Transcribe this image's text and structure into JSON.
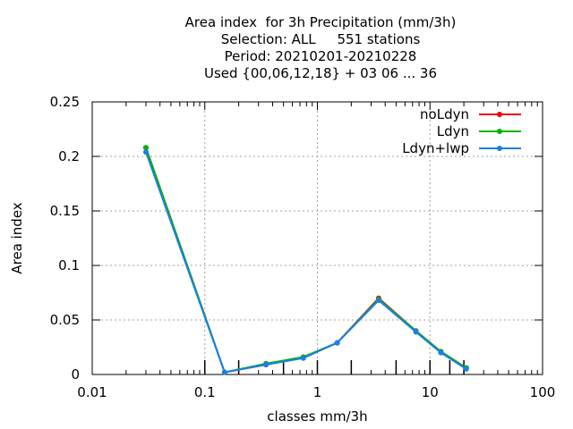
{
  "chart_data": {
    "type": "line",
    "title_lines": [
      "Area index  for 3h Precipitation (mm/3h)",
      "Selection: ALL     551 stations",
      "Period: 20210201-20210228",
      "Used {00,06,12,18} + 03 06 ... 36"
    ],
    "xlabel": "classes mm/3h",
    "ylabel": "Area index",
    "x_scale": "log",
    "xlim": [
      0.01,
      100
    ],
    "ylim": [
      0,
      0.25
    ],
    "x_ticks": [
      0.01,
      0.1,
      1,
      10,
      100
    ],
    "x_tick_labels": [
      "0.01",
      "0.1",
      "1",
      "10",
      "100"
    ],
    "y_ticks": [
      0,
      0.05,
      0.1,
      0.15,
      0.2,
      0.25
    ],
    "y_tick_labels": [
      "0",
      "0.05",
      "0.1",
      "0.15",
      "0.2",
      "0.25"
    ],
    "grid": true,
    "legend_position": "top-right",
    "class_marks": [
      0.1,
      0.2,
      0.5,
      1,
      2,
      5,
      10,
      15,
      20
    ],
    "x": [
      0.03,
      0.15,
      0.35,
      0.75,
      1.5,
      3.5,
      7.5,
      12.5,
      21
    ],
    "series": [
      {
        "name": "noLdyn",
        "color": "#e8000b",
        "values": [
          0.208,
          0.002,
          0.009,
          0.016,
          0.029,
          0.07,
          0.04,
          0.021,
          0.006
        ]
      },
      {
        "name": "Ldyn",
        "color": "#00b400",
        "values": [
          0.208,
          0.002,
          0.01,
          0.016,
          0.029,
          0.069,
          0.04,
          0.021,
          0.006
        ]
      },
      {
        "name": "Ldyn+lwp",
        "color": "#1a7fe8",
        "values": [
          0.204,
          0.002,
          0.009,
          0.015,
          0.029,
          0.068,
          0.039,
          0.02,
          0.005
        ]
      }
    ]
  }
}
